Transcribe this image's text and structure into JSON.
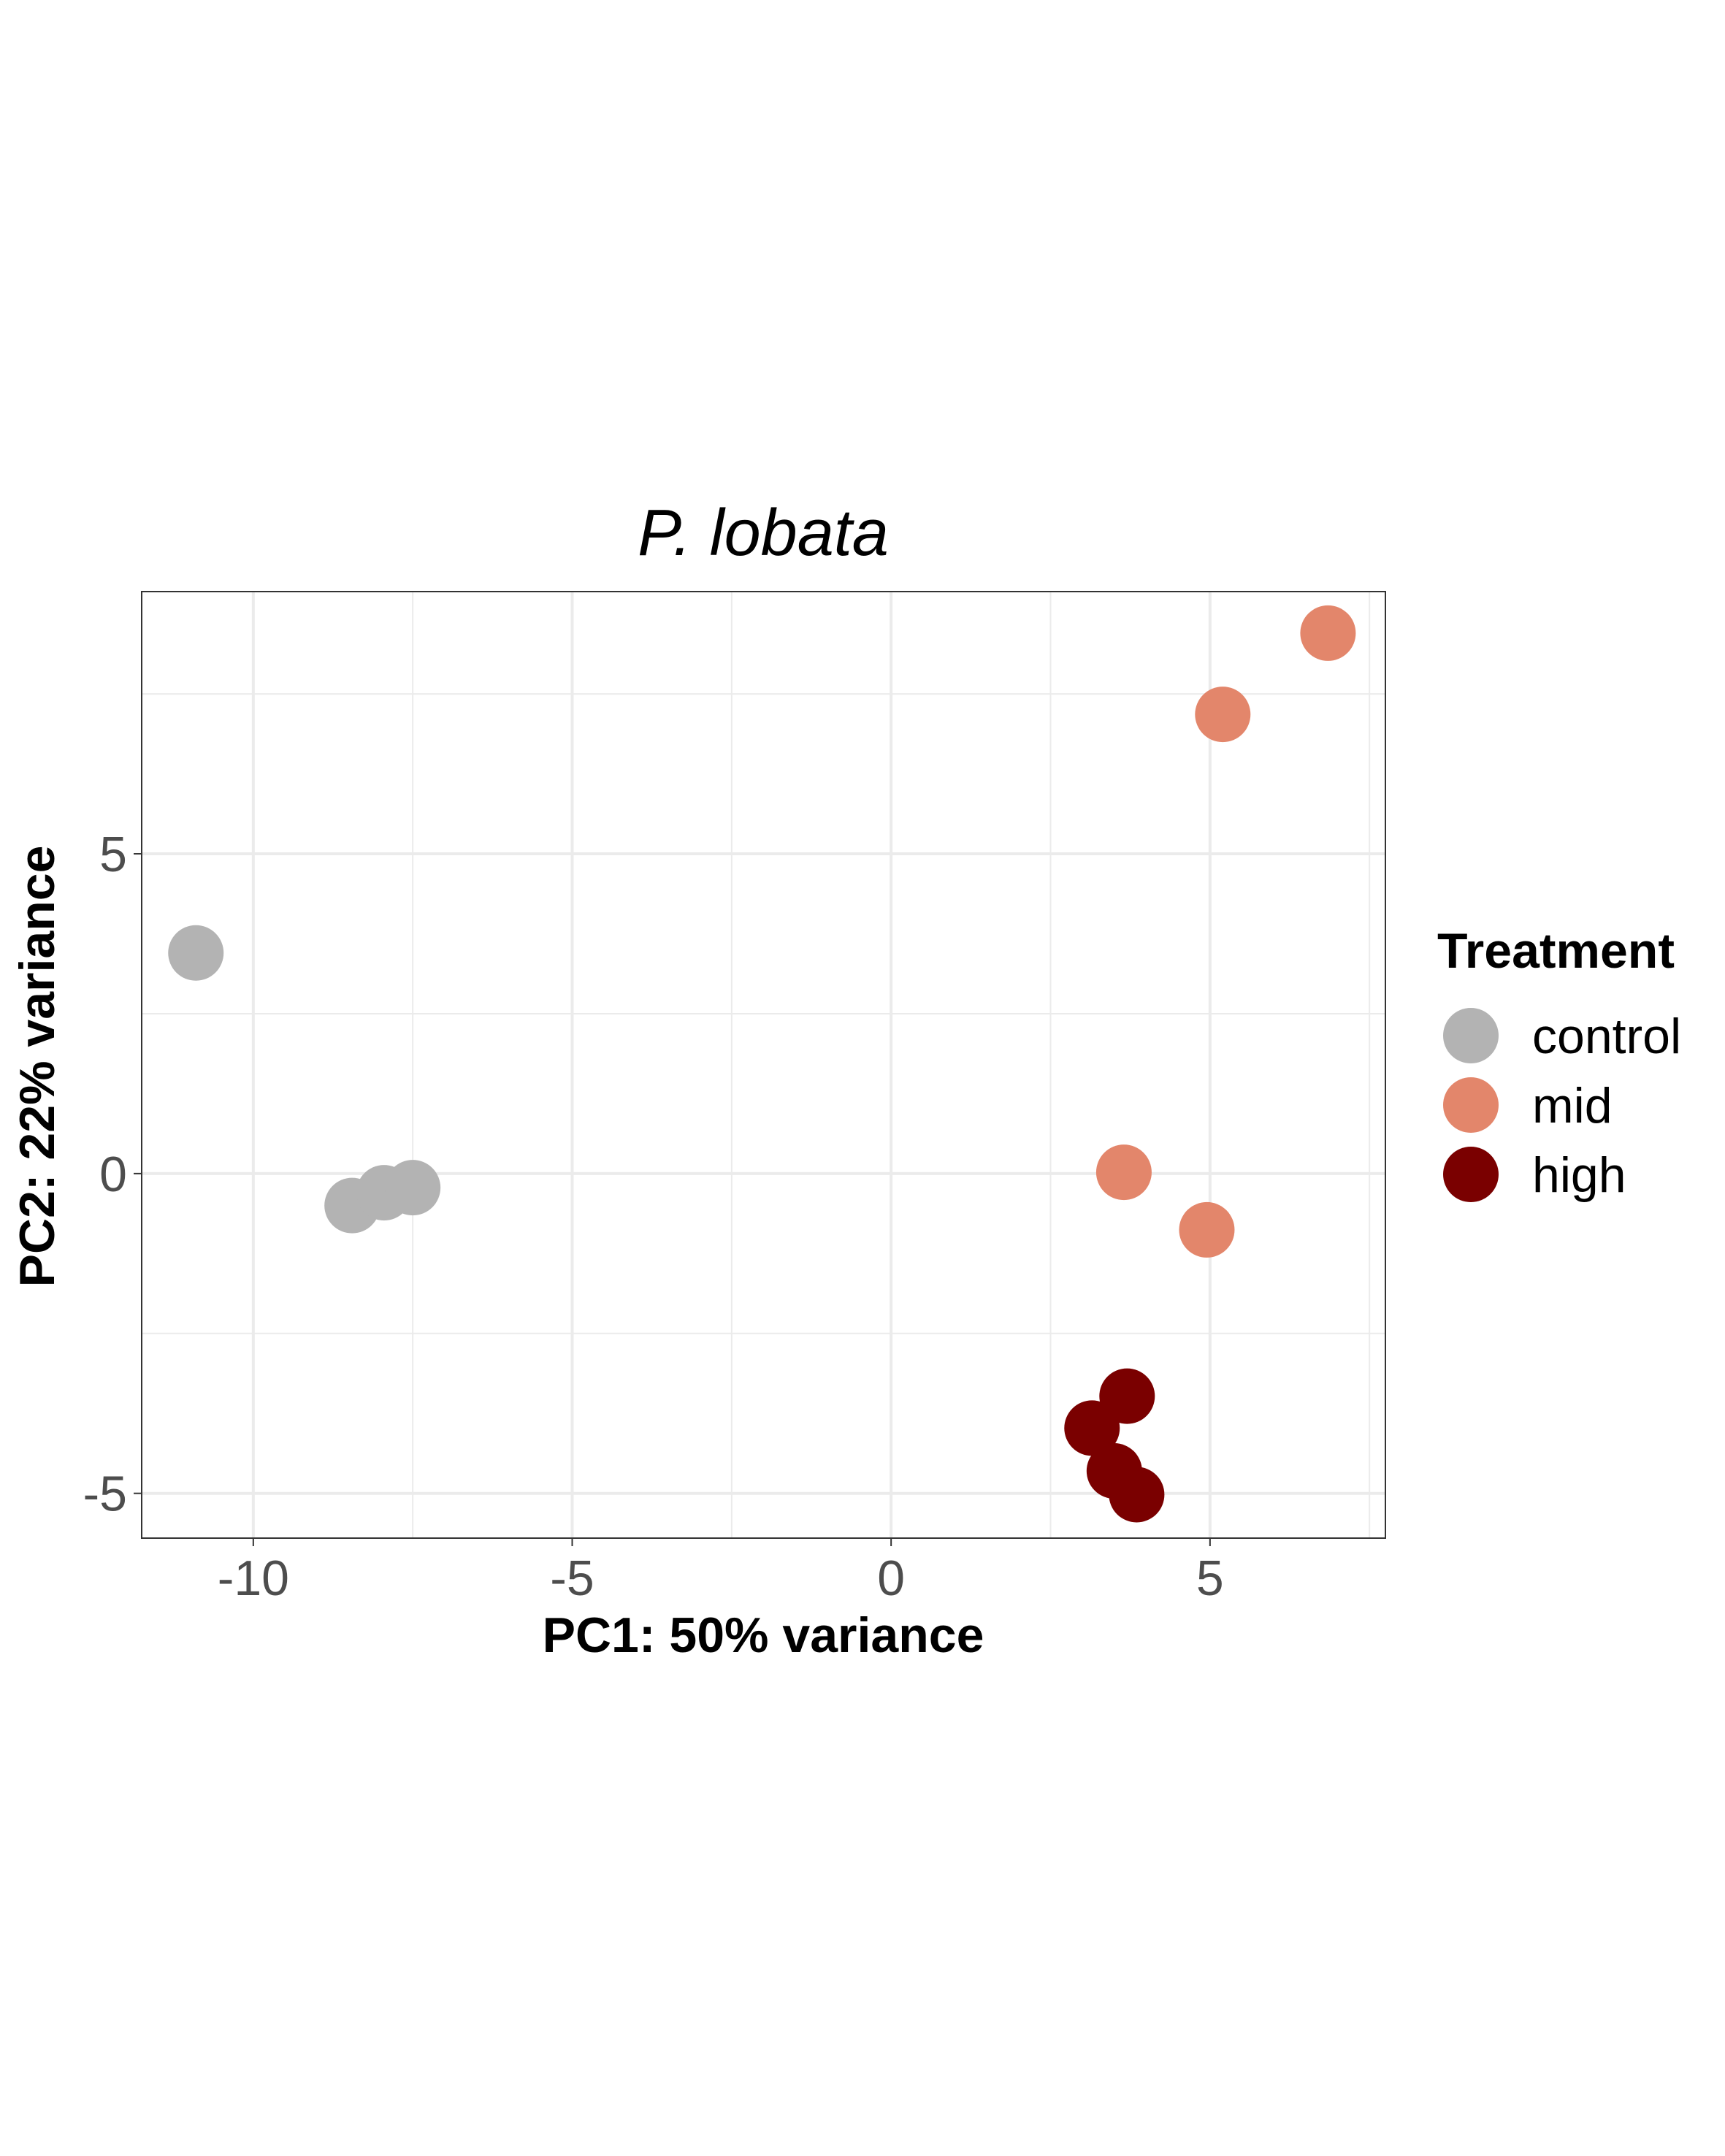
{
  "chart_data": {
    "type": "scatter",
    "title": "P. lobata",
    "xlabel": "PC1: 50% variance",
    "ylabel": "PC2: 22% variance",
    "xlim": [
      -11.75,
      7.75
    ],
    "ylim": [
      -5.7,
      9.1
    ],
    "x_ticks": [
      -10,
      -5,
      0,
      5
    ],
    "y_ticks": [
      -5,
      0,
      5
    ],
    "x_tick_labels": [
      "-10",
      "-5",
      "0",
      "5"
    ],
    "y_tick_labels": [
      "-5",
      "0",
      "5"
    ],
    "grid": true,
    "legend_title": "Treatment",
    "legend_position": "right",
    "series": [
      {
        "name": "control",
        "color": "#B3B3B3",
        "points": [
          {
            "x": -10.9,
            "y": 3.45
          },
          {
            "x": -8.45,
            "y": -0.5
          },
          {
            "x": -7.95,
            "y": -0.3
          },
          {
            "x": -7.5,
            "y": -0.22
          }
        ]
      },
      {
        "name": "mid",
        "color": "#E3866B",
        "points": [
          {
            "x": 6.85,
            "y": 8.45
          },
          {
            "x": 5.2,
            "y": 7.18
          },
          {
            "x": 3.65,
            "y": 0.02
          },
          {
            "x": 4.95,
            "y": -0.88
          }
        ]
      },
      {
        "name": "high",
        "color": "#7A0000",
        "points": [
          {
            "x": 3.7,
            "y": -3.48
          },
          {
            "x": 3.15,
            "y": -3.98
          },
          {
            "x": 3.5,
            "y": -4.65
          },
          {
            "x": 3.85,
            "y": -5.02
          }
        ]
      }
    ]
  }
}
